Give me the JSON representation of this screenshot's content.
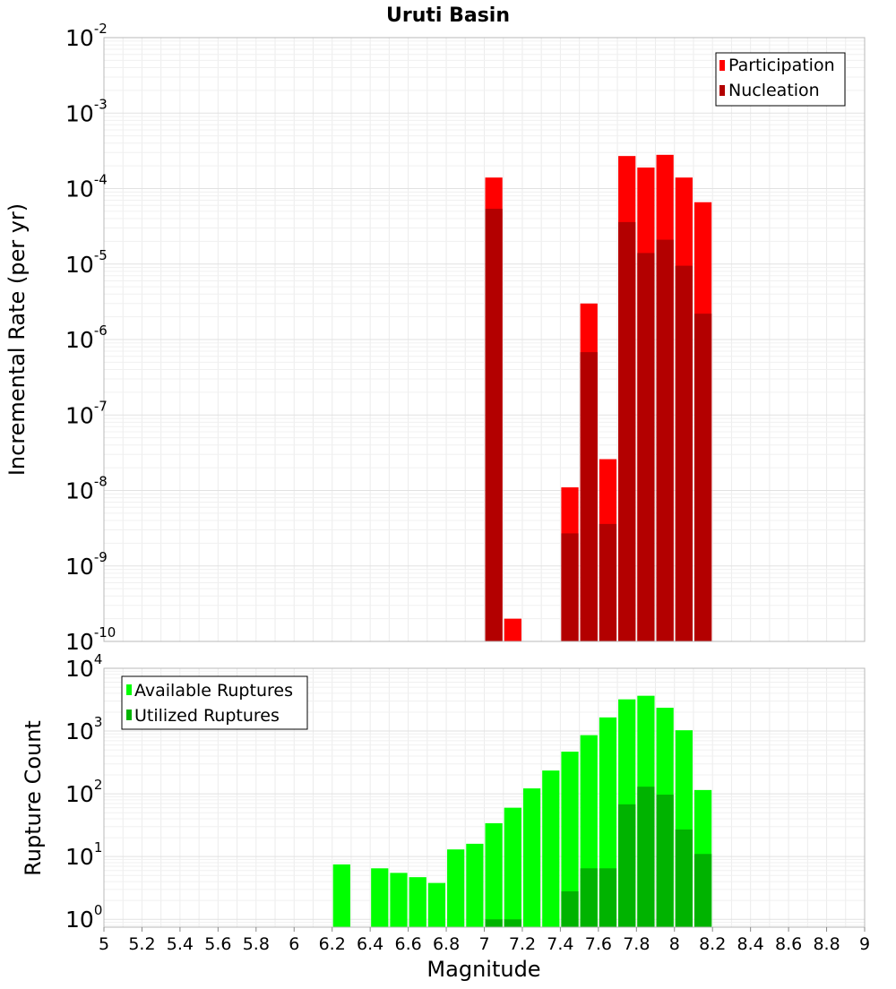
{
  "title": "Uruti Basin",
  "chart_data": [
    {
      "type": "bar",
      "scale": "log",
      "ylabel": "Incremental Rate (per yr)",
      "ylim": [
        1e-10,
        0.01
      ],
      "xlim": [
        5,
        9
      ],
      "y_ticks": [
        {
          "base": "10",
          "exp": "-10",
          "value": 1e-10
        },
        {
          "base": "10",
          "exp": "-9",
          "value": 1e-09
        },
        {
          "base": "10",
          "exp": "-8",
          "value": 1e-08
        },
        {
          "base": "10",
          "exp": "-7",
          "value": 1e-07
        },
        {
          "base": "10",
          "exp": "-6",
          "value": 1e-06
        },
        {
          "base": "10",
          "exp": "-5",
          "value": 1e-05
        },
        {
          "base": "10",
          "exp": "-4",
          "value": 0.0001
        },
        {
          "base": "10",
          "exp": "-3",
          "value": 0.001
        },
        {
          "base": "10",
          "exp": "-2",
          "value": 0.01
        }
      ],
      "legend_position": "top-right",
      "series": [
        {
          "name": "Participation",
          "color": "#ff0000",
          "points": [
            {
              "x": 7.05,
              "y": 0.00014
            },
            {
              "x": 7.15,
              "y": 2e-10
            },
            {
              "x": 7.45,
              "y": 1.1e-08
            },
            {
              "x": 7.55,
              "y": 3e-06
            },
            {
              "x": 7.65,
              "y": 2.6e-08
            },
            {
              "x": 7.75,
              "y": 0.00027
            },
            {
              "x": 7.85,
              "y": 0.00019
            },
            {
              "x": 7.95,
              "y": 0.00028
            },
            {
              "x": 8.05,
              "y": 0.00014
            },
            {
              "x": 8.15,
              "y": 6.6e-05
            }
          ]
        },
        {
          "name": "Nucleation",
          "color": "#b30000",
          "points": [
            {
              "x": 7.05,
              "y": 5.4e-05
            },
            {
              "x": 7.45,
              "y": 2.7e-09
            },
            {
              "x": 7.55,
              "y": 6.8e-07
            },
            {
              "x": 7.65,
              "y": 3.6e-09
            },
            {
              "x": 7.75,
              "y": 3.6e-05
            },
            {
              "x": 7.85,
              "y": 1.4e-05
            },
            {
              "x": 7.95,
              "y": 2.1e-05
            },
            {
              "x": 8.05,
              "y": 9.5e-06
            },
            {
              "x": 8.15,
              "y": 2.2e-06
            }
          ]
        }
      ]
    },
    {
      "type": "bar",
      "scale": "log",
      "ylabel": "Rupture Count",
      "xlabel": "Magnitude",
      "ylim": [
        0.75,
        10000
      ],
      "xlim": [
        5,
        9
      ],
      "y_ticks": [
        {
          "base": "10",
          "exp": "0",
          "value": 1
        },
        {
          "base": "10",
          "exp": "1",
          "value": 10
        },
        {
          "base": "10",
          "exp": "2",
          "value": 100
        },
        {
          "base": "10",
          "exp": "3",
          "value": 1000
        },
        {
          "base": "10",
          "exp": "4",
          "value": 10000
        }
      ],
      "x_ticks": [
        "5",
        "5.2",
        "5.4",
        "5.6",
        "5.8",
        "6",
        "6.2",
        "6.4",
        "6.6",
        "6.8",
        "7",
        "7.2",
        "7.4",
        "7.6",
        "7.8",
        "8",
        "8.2",
        "8.4",
        "8.6",
        "8.8",
        "9"
      ],
      "legend_position": "top-left",
      "series": [
        {
          "name": "Available Ruptures",
          "color": "#00ff00",
          "points": [
            {
              "x": 6.25,
              "y": 7.5
            },
            {
              "x": 6.45,
              "y": 6.5
            },
            {
              "x": 6.55,
              "y": 5.5
            },
            {
              "x": 6.65,
              "y": 4.7
            },
            {
              "x": 6.75,
              "y": 3.8
            },
            {
              "x": 6.85,
              "y": 13
            },
            {
              "x": 6.95,
              "y": 16
            },
            {
              "x": 7.05,
              "y": 34
            },
            {
              "x": 7.15,
              "y": 60
            },
            {
              "x": 7.25,
              "y": 122
            },
            {
              "x": 7.35,
              "y": 235
            },
            {
              "x": 7.45,
              "y": 470
            },
            {
              "x": 7.55,
              "y": 860
            },
            {
              "x": 7.65,
              "y": 1650
            },
            {
              "x": 7.75,
              "y": 3200
            },
            {
              "x": 7.85,
              "y": 3650
            },
            {
              "x": 7.95,
              "y": 2350
            },
            {
              "x": 8.05,
              "y": 1030
            },
            {
              "x": 8.15,
              "y": 115
            }
          ]
        },
        {
          "name": "Utilized Ruptures",
          "color": "#00b300",
          "points": [
            {
              "x": 7.05,
              "y": 1
            },
            {
              "x": 7.15,
              "y": 1
            },
            {
              "x": 7.45,
              "y": 2.8
            },
            {
              "x": 7.55,
              "y": 6.5
            },
            {
              "x": 7.65,
              "y": 6.5
            },
            {
              "x": 7.75,
              "y": 68
            },
            {
              "x": 7.85,
              "y": 130
            },
            {
              "x": 7.95,
              "y": 97
            },
            {
              "x": 8.05,
              "y": 27
            },
            {
              "x": 8.15,
              "y": 11
            }
          ]
        }
      ]
    }
  ]
}
